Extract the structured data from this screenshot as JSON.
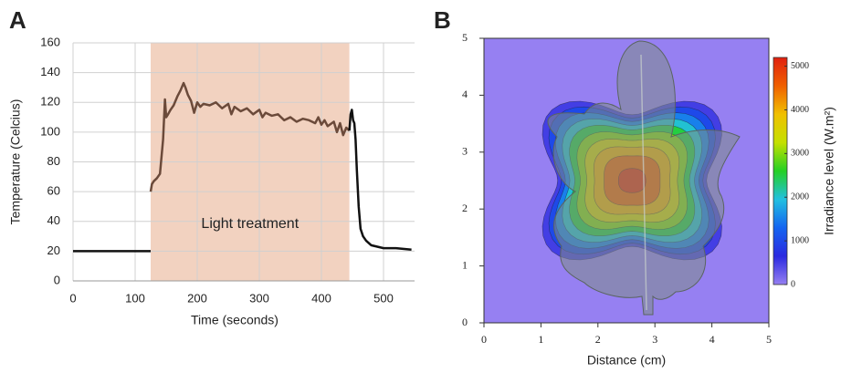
{
  "chart_data": [
    {
      "type": "line",
      "panel_label": "A",
      "x_label": "Time (seconds)",
      "y_label": "Temperature (Celcius)",
      "xlim": [
        0,
        550
      ],
      "ylim": [
        0,
        160
      ],
      "xticks": [
        0,
        100,
        200,
        300,
        400,
        500
      ],
      "yticks": [
        0,
        20,
        40,
        60,
        80,
        100,
        120,
        140,
        160
      ],
      "grid": true,
      "span": {
        "label": "Light treatment",
        "x0": 125,
        "x1": 445,
        "color": "#f2d2c0"
      },
      "series": [
        {
          "color": "#111111",
          "x": [
            0,
            125
          ],
          "values": [
            20,
            20
          ]
        },
        {
          "color": "#6b4a3a",
          "x": [
            125,
            127,
            130,
            135,
            140,
            145,
            148,
            150,
            153,
            157,
            162,
            168,
            173,
            178,
            181,
            185,
            190,
            195,
            200,
            205,
            210,
            220,
            230,
            240,
            250,
            255,
            260,
            270,
            280,
            290,
            300,
            305,
            310,
            320,
            330,
            340,
            350,
            360,
            370,
            380,
            390,
            395,
            400,
            405,
            410,
            420,
            425,
            430,
            435,
            440,
            445
          ],
          "values": [
            60,
            65,
            67,
            69,
            72,
            95,
            122,
            110,
            112,
            115,
            118,
            124,
            128,
            133,
            130,
            125,
            121,
            113,
            120,
            117,
            119,
            118,
            120,
            116,
            119,
            112,
            117,
            114,
            116,
            112,
            115,
            110,
            113,
            111,
            112,
            108,
            110,
            107,
            109,
            108,
            106,
            110,
            105,
            108,
            104,
            107,
            100,
            106,
            98,
            103,
            101
          ]
        },
        {
          "color": "#111111",
          "x": [
            445,
            447,
            449,
            451,
            453,
            455,
            457,
            460,
            463,
            467,
            472,
            480,
            490,
            500,
            520,
            545
          ],
          "values": [
            101,
            112,
            115,
            108,
            106,
            95,
            75,
            50,
            35,
            30,
            27,
            24,
            23,
            22,
            22,
            21
          ]
        }
      ]
    },
    {
      "type": "contour",
      "panel_label": "B",
      "x_label": "Distance (cm)",
      "xlim": [
        0,
        5
      ],
      "ylim": [
        0,
        5
      ],
      "xticks": [
        0,
        1,
        2,
        3,
        4,
        5
      ],
      "yticks": [
        0,
        1,
        2,
        3,
        4,
        5
      ],
      "colorbar_label": "Irradiance level (W.m²)",
      "clim": [
        0,
        5200
      ],
      "cticks": [
        0,
        1000,
        2000,
        3000,
        4000,
        5000
      ],
      "colormap": [
        "#9680f2",
        "#2a2ae0",
        "#1464f0",
        "#22c0e0",
        "#24d024",
        "#c4e000",
        "#f0c000",
        "#f06000",
        "#e02010"
      ],
      "peak_x": 2.6,
      "peak_y": 2.5,
      "levels": [
        500,
        1000,
        1500,
        2000,
        2500,
        3000,
        3500,
        4000,
        4500,
        5000
      ]
    }
  ]
}
